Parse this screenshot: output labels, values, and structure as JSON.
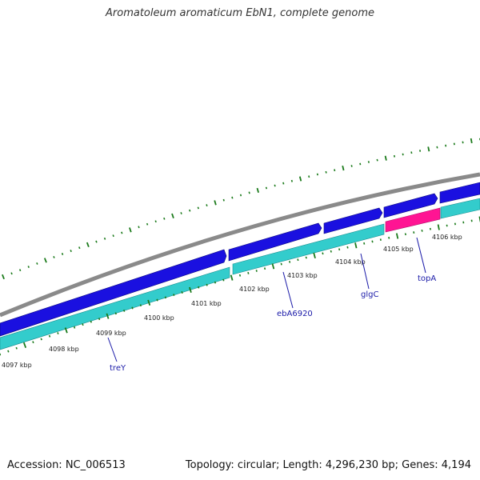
{
  "title": "Aromatoleum aromaticum EbN1, complete genome",
  "footer": {
    "accession": "Accession: NC_006513",
    "summary": "Topology: circular; Length: 4,296,230 bp; Genes: 4,194"
  },
  "colors": {
    "backbone": "#8a8a8a",
    "forward_gene": "#1a10e0",
    "reverse_gene": "#33cccc",
    "highlight_gene": "#ff1493",
    "ticks": "#1a7a1a",
    "gene_label": "#1a1aa8",
    "scale_label": "#222222"
  },
  "scale_labels": [
    "4097 kbp",
    "4098 kbp",
    "4099 kbp",
    "4100 kbp",
    "4101 kbp",
    "4102 kbp",
    "4103 kbp",
    "4104 kbp",
    "4105 kbp",
    "4106 kbp"
  ],
  "gene_labels": [
    "treY",
    "ebA6920",
    "glgC",
    "topA"
  ]
}
